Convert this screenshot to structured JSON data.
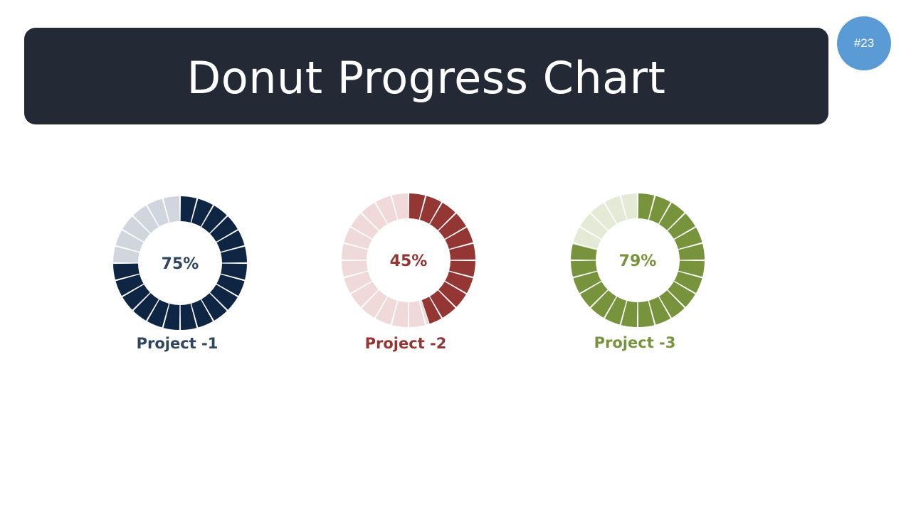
{
  "slide": {
    "title": "Donut Progress Chart",
    "badge": "#23"
  },
  "chart_data": [
    {
      "type": "donut",
      "name": "Project -1",
      "value": 75,
      "value_label": "75%",
      "segments": 24,
      "color": "#0f2544",
      "track_color": "#d1d5de"
    },
    {
      "type": "donut",
      "name": "Project -2",
      "value": 45,
      "value_label": "45%",
      "segments": 24,
      "color": "#943634",
      "track_color": "#efd9d9"
    },
    {
      "type": "donut",
      "name": "Project -3",
      "value": 79,
      "value_label": "79%",
      "segments": 24,
      "color": "#77933c",
      "track_color": "#e4ead6"
    }
  ]
}
